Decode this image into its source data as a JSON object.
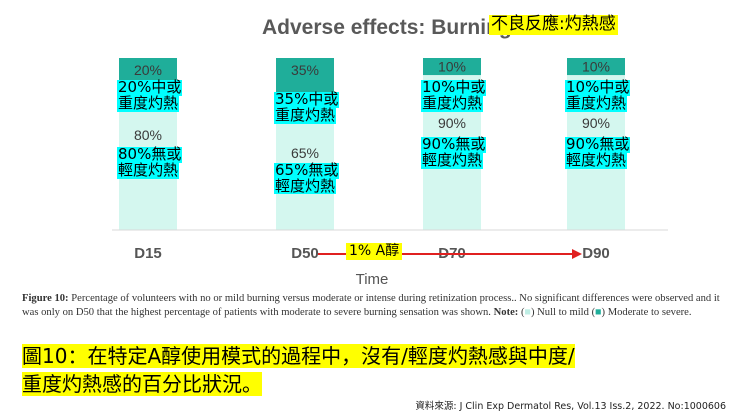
{
  "annotation_title_zh": "不良反應:灼熱感",
  "arrow_label_zh": "1% A醇",
  "caption": {
    "figure_label": "Figure 10:",
    "text": "Percentage of volunteers with no or mild burning versus moderate or intense during retinization process.. No significant differences were observed and it was only on D50 that the highest percentage of patients with moderate to severe burning sensation was shown.",
    "note_label": "Note:",
    "legend_null": "Null to mild",
    "legend_moderate": "Moderate to severe."
  },
  "caption_zh_line1": "圖10：在特定A醇使用模式的過程中，沒有/輕度灼熱感與中度/",
  "caption_zh_line2": "重度灼熱感的百分比狀況。",
  "source": "資料來源: J Clin Exp Dermatol Res, Vol.13 Iss.2, 2022. No:1000606",
  "colors": {
    "moderate_to_severe": "#1fae9a",
    "null_to_mild": "#d4f7ef",
    "annotation_cyan": "#00ffff",
    "annotation_yellow": "#ffff00",
    "arrow": "#e02020"
  },
  "chart_data": {
    "type": "bar",
    "stacked": true,
    "title": "Adverse effects: Burning",
    "xlabel": "Time",
    "ylabel": "",
    "ylim": [
      0,
      100
    ],
    "categories": [
      "D15",
      "D50",
      "D70",
      "D90"
    ],
    "series": [
      {
        "name": "Moderate to severe",
        "values": [
          20,
          35,
          10,
          10
        ]
      },
      {
        "name": "Null to mild",
        "values": [
          80,
          65,
          90,
          90
        ]
      }
    ],
    "value_labels": {
      "moderate": [
        "20%",
        "35%",
        "10%",
        "10%"
      ],
      "mild": [
        "80%",
        "65%",
        "90%",
        "90%"
      ]
    },
    "annotations_zh": {
      "moderate": [
        [
          "20%中或",
          "重度灼熱"
        ],
        [
          "35%中或",
          "重度灼熱"
        ],
        [
          "10%中或",
          "重度灼熱"
        ],
        [
          "10%中或",
          "重度灼熱"
        ]
      ],
      "mild": [
        [
          "80%無或",
          "輕度灼熱"
        ],
        [
          "65%無或",
          "輕度灼熱"
        ],
        [
          "90%無或",
          "輕度灼熱"
        ],
        [
          "90%無或",
          "輕度灼熱"
        ]
      ]
    }
  }
}
